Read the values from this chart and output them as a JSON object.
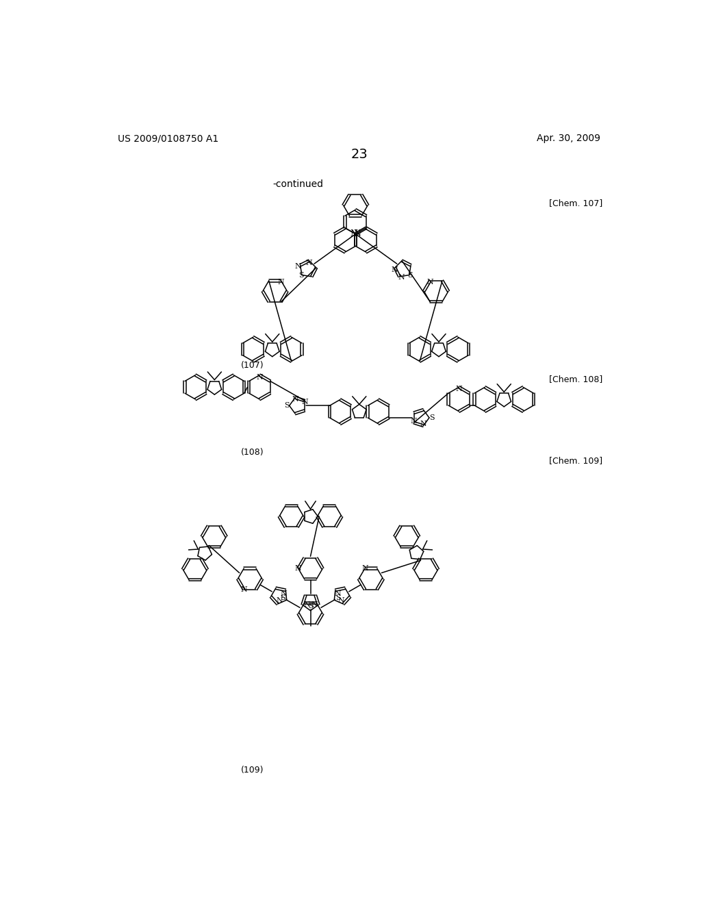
{
  "page_number": "23",
  "header_left": "US 2009/0108750 A1",
  "header_right": "Apr. 30, 2009",
  "continued_label": "-continued",
  "chem_labels": [
    "[Chem. 107]",
    "[Chem. 108]",
    "[Chem. 109]"
  ],
  "compound_labels": [
    "(107)",
    "(108)",
    "(109)"
  ],
  "background_color": "#ffffff"
}
